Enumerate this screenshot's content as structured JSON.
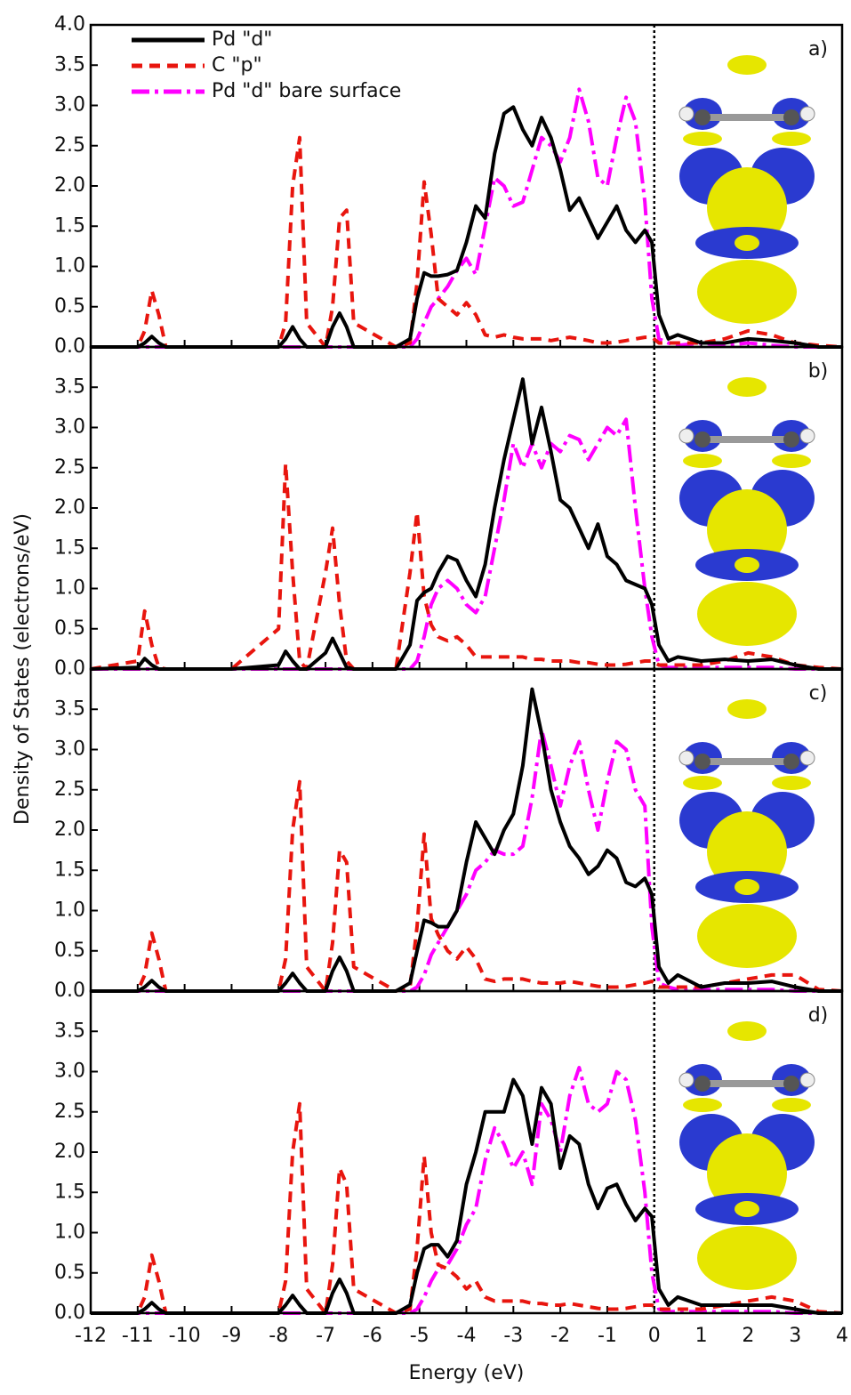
{
  "chart_data": [
    {
      "type": "line",
      "label": "a)",
      "ylabel": "Density of States (electrons/eV)",
      "legend": "upper left",
      "vline": 0,
      "xlim": [
        -12,
        4
      ],
      "ylim": [
        0,
        4
      ],
      "yticks": [
        {
          "value": 0,
          "label": "0.0"
        },
        0.5,
        {
          "value": 1,
          "label": "1.0"
        },
        1.5,
        {
          "value": 2,
          "label": "2.0"
        },
        2.5,
        {
          "value": 3,
          "label": "3.0"
        },
        3.5,
        {
          "value": 4,
          "label": "4.0"
        }
      ],
      "x": [
        -12,
        -11,
        -10.85,
        -10.7,
        -10.55,
        -10.4,
        -9,
        -8,
        -7.85,
        -7.7,
        -7.55,
        -7.4,
        -7,
        -6.85,
        -6.7,
        -6.55,
        -6.4,
        -5.5,
        -5.2,
        -5.05,
        -4.9,
        -4.75,
        -4.6,
        -4.4,
        -4.2,
        -4,
        -3.8,
        -3.6,
        -3.4,
        -3.2,
        -3,
        -2.8,
        -2.6,
        -2.4,
        -2.2,
        -2,
        -1.8,
        -1.6,
        -1.4,
        -1.2,
        -1,
        -0.8,
        -0.6,
        -0.4,
        -0.2,
        -0.05,
        0.1,
        0.3,
        0.5,
        1,
        1.5,
        2,
        2.5,
        3,
        3.5,
        4
      ],
      "series": [
        {
          "name": "Pd \"d\"",
          "color": "#000000",
          "style": "solid",
          "values": [
            0,
            0,
            0.05,
            0.13,
            0.05,
            0,
            0,
            0,
            0.1,
            0.25,
            0.1,
            0,
            0,
            0.25,
            0.42,
            0.25,
            0,
            0,
            0.1,
            0.6,
            0.92,
            0.88,
            0.88,
            0.9,
            0.95,
            1.3,
            1.75,
            1.6,
            2.4,
            2.9,
            2.98,
            2.7,
            2.5,
            2.85,
            2.6,
            2.2,
            1.7,
            1.85,
            1.6,
            1.35,
            1.55,
            1.75,
            1.45,
            1.3,
            1.45,
            1.3,
            0.4,
            0.1,
            0.15,
            0.05,
            0.05,
            0.1,
            0.08,
            0.05,
            0,
            0
          ]
        },
        {
          "name": "C \"p\"",
          "color": "#e8150e",
          "style": "dashed",
          "values": [
            0,
            0,
            0.2,
            0.7,
            0.4,
            0,
            0,
            0,
            0.3,
            2.0,
            2.6,
            0.3,
            0,
            0.5,
            1.6,
            1.7,
            0.3,
            0,
            0.05,
            0.8,
            2.05,
            1.4,
            0.6,
            0.5,
            0.4,
            0.55,
            0.4,
            0.15,
            0.12,
            0.15,
            0.12,
            0.1,
            0.1,
            0.1,
            0.08,
            0.1,
            0.12,
            0.1,
            0.08,
            0.05,
            0.05,
            0.06,
            0.08,
            0.1,
            0.12,
            0.12,
            0.05,
            0.05,
            0.05,
            0.05,
            0.1,
            0.2,
            0.15,
            0.05,
            0.02,
            0
          ]
        },
        {
          "name": "Pd \"d\" bare surface",
          "color": "#ff00ff",
          "style": "dashdot",
          "values": [
            0,
            0,
            0,
            0,
            0,
            0,
            0,
            0,
            0,
            0,
            0,
            0,
            0,
            0,
            0,
            0,
            0,
            0,
            0,
            0.1,
            0.3,
            0.5,
            0.6,
            0.75,
            0.95,
            1.1,
            0.9,
            1.5,
            2.1,
            2.0,
            1.75,
            1.8,
            2.2,
            2.6,
            2.5,
            2.3,
            2.6,
            3.2,
            2.8,
            2.1,
            2.0,
            2.6,
            3.1,
            2.8,
            1.8,
            0.6,
            0.1,
            0.05,
            0.02,
            0.05,
            0.02,
            0.05,
            0.02,
            0,
            0,
            0
          ]
        }
      ]
    },
    {
      "type": "line",
      "label": "b)",
      "vline": 0,
      "xlim": [
        -12,
        4
      ],
      "ylim": [
        0,
        4
      ],
      "yticks": [
        {
          "value": 0,
          "label": "0.0"
        },
        0.5,
        {
          "value": 1,
          "label": "1.0"
        },
        1.5,
        {
          "value": 2,
          "label": "2.0"
        },
        2.5,
        {
          "value": 3,
          "label": "3.0"
        },
        3.5
      ],
      "x": [
        -12,
        -11,
        -10.85,
        -10.7,
        -10.55,
        -10.4,
        -9,
        -8,
        -7.85,
        -7.7,
        -7.55,
        -7.4,
        -7,
        -6.85,
        -6.7,
        -6.55,
        -6.4,
        -5.5,
        -5.2,
        -5.05,
        -4.9,
        -4.75,
        -4.6,
        -4.4,
        -4.2,
        -4,
        -3.8,
        -3.6,
        -3.4,
        -3.2,
        -3,
        -2.8,
        -2.6,
        -2.4,
        -2.2,
        -2,
        -1.8,
        -1.6,
        -1.4,
        -1.2,
        -1,
        -0.8,
        -0.6,
        -0.4,
        -0.2,
        -0.05,
        0.1,
        0.3,
        0.5,
        1,
        1.5,
        2,
        2.5,
        3,
        3.5,
        4
      ],
      "series": [
        {
          "color": "#000000",
          "style": "solid",
          "values": [
            0,
            0.02,
            0.13,
            0.05,
            0,
            0,
            0,
            0.05,
            0.22,
            0.1,
            0,
            0,
            0.2,
            0.38,
            0.2,
            0.02,
            0,
            0,
            0.3,
            0.85,
            0.95,
            1.0,
            1.2,
            1.4,
            1.35,
            1.1,
            0.9,
            1.3,
            2.0,
            2.6,
            3.1,
            3.6,
            2.8,
            3.25,
            2.7,
            2.1,
            2.0,
            1.75,
            1.5,
            1.8,
            1.4,
            1.3,
            1.1,
            1.05,
            1.0,
            0.8,
            0.3,
            0.1,
            0.15,
            0.1,
            0.12,
            0.1,
            0.12,
            0.05,
            0,
            0
          ]
        },
        {
          "color": "#e8150e",
          "style": "dashed",
          "values": [
            0,
            0.1,
            0.72,
            0.3,
            0.02,
            0,
            0,
            0.5,
            2.55,
            1.2,
            0.1,
            0,
            1.2,
            1.75,
            0.8,
            0.1,
            0,
            0,
            1.2,
            1.95,
            0.9,
            0.55,
            0.4,
            0.35,
            0.4,
            0.3,
            0.15,
            0.15,
            0.15,
            0.15,
            0.15,
            0.15,
            0.12,
            0.12,
            0.1,
            0.1,
            0.1,
            0.08,
            0.08,
            0.06,
            0.05,
            0.05,
            0.06,
            0.08,
            0.1,
            0.1,
            0.05,
            0.05,
            0.05,
            0.05,
            0.1,
            0.2,
            0.15,
            0.05,
            0.02,
            0
          ]
        },
        {
          "color": "#ff00ff",
          "style": "dashdot",
          "values": [
            0,
            0,
            0,
            0,
            0,
            0,
            0,
            0,
            0,
            0,
            0,
            0,
            0,
            0,
            0,
            0,
            0,
            0,
            0,
            0.1,
            0.4,
            0.8,
            1.0,
            1.1,
            1.0,
            0.8,
            0.7,
            0.9,
            1.5,
            2.1,
            2.8,
            2.5,
            2.8,
            2.5,
            2.8,
            2.7,
            2.9,
            2.85,
            2.6,
            2.8,
            3.0,
            2.9,
            3.1,
            2.0,
            1.0,
            0.4,
            0.05,
            0.02,
            0.02,
            0.02,
            0.02,
            0.02,
            0.02,
            0,
            0,
            0
          ]
        }
      ]
    },
    {
      "type": "line",
      "label": "c)",
      "vline": 0,
      "xlim": [
        -12,
        4
      ],
      "ylim": [
        0,
        4
      ],
      "yticks": [
        {
          "value": 0,
          "label": "0.0"
        },
        0.5,
        {
          "value": 1,
          "label": "1.0"
        },
        1.5,
        {
          "value": 2,
          "label": "2.0"
        },
        2.5,
        {
          "value": 3,
          "label": "3.0"
        },
        3.5
      ],
      "x": [
        -12,
        -11,
        -10.85,
        -10.7,
        -10.55,
        -10.4,
        -9,
        -8,
        -7.85,
        -7.7,
        -7.55,
        -7.4,
        -7,
        -6.85,
        -6.7,
        -6.55,
        -6.4,
        -5.5,
        -5.2,
        -5.05,
        -4.9,
        -4.75,
        -4.6,
        -4.4,
        -4.2,
        -4,
        -3.8,
        -3.6,
        -3.4,
        -3.2,
        -3,
        -2.8,
        -2.6,
        -2.4,
        -2.2,
        -2,
        -1.8,
        -1.6,
        -1.4,
        -1.2,
        -1,
        -0.8,
        -0.6,
        -0.4,
        -0.2,
        -0.05,
        0.1,
        0.3,
        0.5,
        1,
        1.5,
        2,
        2.5,
        3,
        3.5,
        4
      ],
      "series": [
        {
          "color": "#000000",
          "style": "solid",
          "values": [
            0,
            0,
            0.05,
            0.13,
            0.05,
            0,
            0,
            0,
            0.1,
            0.22,
            0.1,
            0,
            0,
            0.25,
            0.42,
            0.25,
            0,
            0,
            0.1,
            0.5,
            0.88,
            0.85,
            0.8,
            0.8,
            1.0,
            1.6,
            2.1,
            1.9,
            1.7,
            2.0,
            2.2,
            2.8,
            3.75,
            3.2,
            2.5,
            2.1,
            1.8,
            1.65,
            1.45,
            1.55,
            1.75,
            1.65,
            1.35,
            1.3,
            1.4,
            1.2,
            0.3,
            0.1,
            0.2,
            0.05,
            0.1,
            0.1,
            0.12,
            0.05,
            0,
            0
          ]
        },
        {
          "color": "#e8150e",
          "style": "dashed",
          "values": [
            0,
            0,
            0.2,
            0.72,
            0.4,
            0,
            0,
            0,
            0.4,
            2.0,
            2.6,
            0.3,
            0,
            0.6,
            1.75,
            1.6,
            0.3,
            0,
            0.05,
            0.8,
            1.95,
            0.9,
            0.7,
            0.5,
            0.4,
            0.55,
            0.4,
            0.15,
            0.12,
            0.15,
            0.15,
            0.15,
            0.12,
            0.1,
            0.1,
            0.1,
            0.12,
            0.1,
            0.08,
            0.06,
            0.05,
            0.05,
            0.06,
            0.08,
            0.1,
            0.12,
            0.05,
            0.05,
            0.05,
            0.05,
            0.1,
            0.15,
            0.2,
            0.2,
            0.02,
            0
          ]
        },
        {
          "color": "#ff00ff",
          "style": "dashdot",
          "values": [
            0,
            0,
            0,
            0,
            0,
            0,
            0,
            0,
            0,
            0,
            0,
            0,
            0,
            0,
            0,
            0,
            0,
            0,
            0,
            0.05,
            0.2,
            0.45,
            0.6,
            0.8,
            1.0,
            1.2,
            1.5,
            1.6,
            1.75,
            1.7,
            1.7,
            1.8,
            2.4,
            3.25,
            2.8,
            2.3,
            2.8,
            3.1,
            2.5,
            2.0,
            2.6,
            3.1,
            3.0,
            2.5,
            2.3,
            0.8,
            0.1,
            0.05,
            0.02,
            0.02,
            0.02,
            0.02,
            0.02,
            0,
            0,
            0
          ]
        }
      ]
    },
    {
      "type": "line",
      "label": "d)",
      "xlabel": "Energy (eV)",
      "vline": 0,
      "xlim": [
        -12,
        4
      ],
      "ylim": [
        0,
        4
      ],
      "yticks": [
        {
          "value": 0,
          "label": "0.0"
        },
        0.5,
        {
          "value": 1,
          "label": "1.0"
        },
        1.5,
        {
          "value": 2,
          "label": "2.0"
        },
        2.5,
        {
          "value": 3,
          "label": "3.0"
        },
        3.5
      ],
      "xticks": [
        -12,
        -11,
        -10,
        -9,
        -8,
        -7,
        -6,
        -5,
        -4,
        -3,
        -2,
        -1,
        0,
        1,
        2,
        3,
        4
      ],
      "x": [
        -12,
        -11,
        -10.85,
        -10.7,
        -10.55,
        -10.4,
        -9,
        -8,
        -7.85,
        -7.7,
        -7.55,
        -7.4,
        -7,
        -6.85,
        -6.7,
        -6.55,
        -6.4,
        -5.5,
        -5.2,
        -5.05,
        -4.9,
        -4.75,
        -4.6,
        -4.4,
        -4.2,
        -4,
        -3.8,
        -3.6,
        -3.4,
        -3.2,
        -3,
        -2.8,
        -2.6,
        -2.4,
        -2.2,
        -2,
        -1.8,
        -1.6,
        -1.4,
        -1.2,
        -1,
        -0.8,
        -0.6,
        -0.4,
        -0.2,
        -0.05,
        0.1,
        0.3,
        0.5,
        1,
        1.5,
        2,
        2.5,
        3,
        3.5,
        4
      ],
      "series": [
        {
          "color": "#000000",
          "style": "solid",
          "values": [
            0,
            0,
            0.05,
            0.13,
            0.05,
            0,
            0,
            0,
            0.1,
            0.22,
            0.1,
            0,
            0,
            0.25,
            0.42,
            0.25,
            0,
            0,
            0.1,
            0.5,
            0.8,
            0.85,
            0.85,
            0.7,
            0.9,
            1.6,
            2.0,
            2.5,
            2.5,
            2.5,
            2.9,
            2.7,
            2.1,
            2.8,
            2.6,
            1.8,
            2.2,
            2.1,
            1.6,
            1.3,
            1.55,
            1.6,
            1.35,
            1.15,
            1.3,
            1.2,
            0.3,
            0.1,
            0.2,
            0.1,
            0.1,
            0.1,
            0.1,
            0.05,
            0,
            0
          ]
        },
        {
          "color": "#e8150e",
          "style": "dashed",
          "values": [
            0,
            0,
            0.2,
            0.72,
            0.4,
            0,
            0,
            0,
            0.4,
            2.0,
            2.6,
            0.3,
            0,
            0.6,
            1.8,
            1.6,
            0.3,
            0,
            0.05,
            0.8,
            1.95,
            1.0,
            0.6,
            0.55,
            0.45,
            0.3,
            0.4,
            0.2,
            0.15,
            0.15,
            0.15,
            0.15,
            0.12,
            0.12,
            0.1,
            0.1,
            0.12,
            0.1,
            0.08,
            0.06,
            0.05,
            0.05,
            0.06,
            0.08,
            0.1,
            0.1,
            0.05,
            0.05,
            0.05,
            0.05,
            0.1,
            0.15,
            0.2,
            0.15,
            0.02,
            0
          ]
        },
        {
          "color": "#ff00ff",
          "style": "dashdot",
          "values": [
            0,
            0,
            0,
            0,
            0,
            0,
            0,
            0,
            0,
            0,
            0,
            0,
            0,
            0,
            0,
            0,
            0,
            0,
            0,
            0.05,
            0.2,
            0.4,
            0.55,
            0.6,
            0.8,
            1.1,
            1.3,
            1.9,
            2.3,
            2.1,
            1.8,
            2.0,
            1.6,
            2.6,
            2.4,
            2.0,
            2.7,
            3.05,
            2.6,
            2.5,
            2.6,
            3.0,
            2.9,
            2.4,
            1.5,
            0.5,
            0.05,
            0.02,
            0.02,
            0.02,
            0.02,
            0.02,
            0.02,
            0,
            0,
            0
          ]
        }
      ]
    }
  ]
}
